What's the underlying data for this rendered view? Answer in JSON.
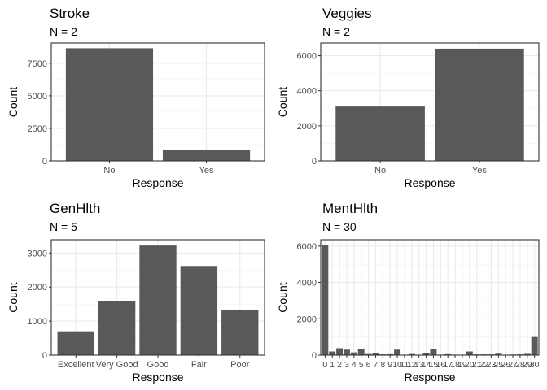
{
  "chart_data": [
    {
      "type": "bar",
      "title": "Stroke",
      "subtitle": "N = 2",
      "xlabel": "Response",
      "ylabel": "Count",
      "categories": [
        "No",
        "Yes"
      ],
      "values": [
        8650,
        850
      ],
      "ylim": [
        0,
        9050
      ],
      "yticks": [
        0,
        2500,
        5000,
        7500
      ],
      "ytick_labels": [
        "0",
        "2500",
        "5000",
        "7500"
      ],
      "grid": true,
      "bar_color": "#595959"
    },
    {
      "type": "bar",
      "title": "Veggies",
      "subtitle": "N = 2",
      "xlabel": "Response",
      "ylabel": "Count",
      "categories": [
        "No",
        "Yes"
      ],
      "values": [
        3100,
        6400
      ],
      "ylim": [
        0,
        6720
      ],
      "yticks": [
        0,
        2000,
        4000,
        6000
      ],
      "ytick_labels": [
        "0",
        "2000",
        "4000",
        "6000"
      ],
      "grid": true,
      "bar_color": "#595959"
    },
    {
      "type": "bar",
      "title": "GenHlth",
      "subtitle": "N = 5",
      "xlabel": "Response",
      "ylabel": "Count",
      "categories": [
        "Excellent",
        "Very Good",
        "Good",
        "Fair",
        "Poor"
      ],
      "values": [
        700,
        1580,
        3220,
        2620,
        1330
      ],
      "ylim": [
        0,
        3390
      ],
      "yticks": [
        0,
        1000,
        2000,
        3000
      ],
      "ytick_labels": [
        "0",
        "1000",
        "2000",
        "3000"
      ],
      "grid": true,
      "bar_color": "#595959"
    },
    {
      "type": "bar",
      "title": "MentHlth",
      "subtitle": "N = 30",
      "xlabel": "Response",
      "ylabel": "Count",
      "categories": [
        "0",
        "1",
        "2",
        "3",
        "4",
        "5",
        "6",
        "7",
        "8",
        "9",
        "10",
        "11",
        "12",
        "13",
        "14",
        "15",
        "16",
        "17",
        "18",
        "19",
        "20",
        "21",
        "22",
        "23",
        "25",
        "26",
        "27",
        "28",
        "29",
        "30"
      ],
      "values": [
        6050,
        200,
        380,
        300,
        150,
        350,
        60,
        130,
        40,
        50,
        300,
        10,
        60,
        10,
        90,
        350,
        10,
        50,
        10,
        10,
        200,
        40,
        40,
        40,
        80,
        10,
        30,
        40,
        70,
        1000
      ],
      "ylim": [
        0,
        6350
      ],
      "yticks": [
        0,
        2000,
        4000,
        6000
      ],
      "ytick_labels": [
        "0",
        "2000",
        "4000",
        "6000"
      ],
      "grid": true,
      "bar_color": "#595959"
    }
  ]
}
